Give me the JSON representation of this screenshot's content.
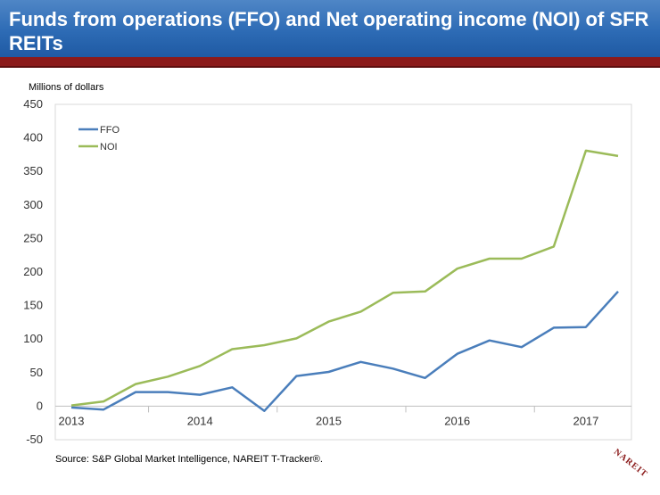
{
  "header": {
    "title": "Funds from operations (FFO) and Net operating income (NOI) of SFR REITs"
  },
  "footer": {
    "source": "Source: S&P Global Market Intelligence, NAREIT T-Tracker®.",
    "logo_text": "NAREIT"
  },
  "chart_data": {
    "type": "line",
    "ylabel": "Millions of dollars",
    "ylim": [
      -50,
      450
    ],
    "yticks": [
      -50,
      0,
      50,
      100,
      150,
      200,
      250,
      300,
      350,
      400,
      450
    ],
    "xtick_labels": [
      "2013",
      "2014",
      "2015",
      "2016",
      "2017"
    ],
    "x": [
      "2013Q1",
      "2013Q2",
      "2013Q3",
      "2013Q4",
      "2014Q1",
      "2014Q2",
      "2014Q3",
      "2014Q4",
      "2015Q1",
      "2015Q2",
      "2015Q3",
      "2015Q4",
      "2016Q1",
      "2016Q2",
      "2016Q3",
      "2016Q4",
      "2017Q1",
      "2017Q2"
    ],
    "series": [
      {
        "name": "FFO",
        "color": "#4a7ebb",
        "values": [
          -2,
          -5,
          21,
          21,
          17,
          28,
          -7,
          45,
          51,
          66,
          56,
          42,
          78,
          98,
          88,
          117,
          118,
          171
        ]
      },
      {
        "name": "NOI",
        "color": "#9bbb59",
        "values": [
          1,
          7,
          33,
          44,
          60,
          85,
          91,
          101,
          126,
          141,
          169,
          171,
          205,
          220,
          220,
          238,
          381,
          373
        ]
      }
    ],
    "legend_position": "top-left",
    "grid": false
  }
}
